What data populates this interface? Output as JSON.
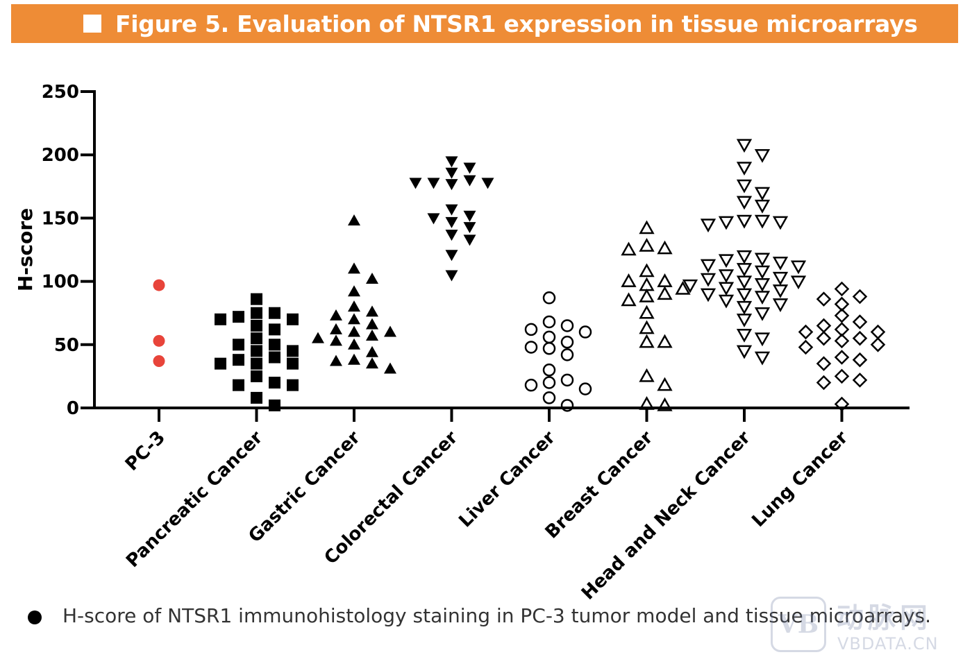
{
  "banner": {
    "title": "Figure 5. Evaluation of NTSR1 expression in tissue microarrays"
  },
  "caption": {
    "text": "H-score of NTSR1 immunohistology staining in PC-3 tumor model and tissue microarrays."
  },
  "watermark": {
    "logo": "VB",
    "cn": "动脉网",
    "en": "VBDATA.CN"
  },
  "colors": {
    "banner": "#ee8c36",
    "pc3_marker": "#e8443a",
    "ink": "#000000"
  },
  "chart_data": {
    "type": "scatter",
    "title": "",
    "xlabel": "",
    "ylabel": "H-score",
    "ylim": [
      0,
      250
    ],
    "yticks": [
      0,
      50,
      100,
      150,
      200,
      250
    ],
    "categories": [
      "PC-3",
      "Pancreatic Cancer",
      "Gastric Cancer",
      "Colorectal Cancer",
      "Liver Cancer",
      "Breast Cancer",
      "Head and Neck Cancer",
      "Lung Cancer"
    ],
    "series": [
      {
        "name": "PC-3",
        "marker": "circle-filled",
        "color": "#e8443a",
        "values": [
          97,
          53,
          37
        ]
      },
      {
        "name": "Pancreatic Cancer",
        "marker": "square-filled",
        "color": "#000000",
        "values": [
          86,
          75,
          75,
          72,
          70,
          70,
          65,
          62,
          55,
          50,
          50,
          45,
          45,
          40,
          38,
          35,
          35,
          35,
          25,
          20,
          18,
          18,
          8,
          2
        ]
      },
      {
        "name": "Gastric Cancer",
        "marker": "triangle-up-filled",
        "color": "#000000",
        "values": [
          148,
          110,
          102,
          92,
          80,
          76,
          73,
          70,
          66,
          62,
          60,
          60,
          57,
          55,
          53,
          50,
          44,
          38,
          37,
          35,
          31
        ]
      },
      {
        "name": "Colorectal Cancer",
        "marker": "triangle-down-filled",
        "color": "#000000",
        "values": [
          195,
          190,
          186,
          180,
          178,
          178,
          177,
          178,
          157,
          152,
          150,
          147,
          143,
          137,
          133,
          121,
          105
        ]
      },
      {
        "name": "Liver Cancer",
        "marker": "circle-open",
        "color": "#000000",
        "values": [
          87,
          68,
          65,
          62,
          60,
          56,
          52,
          48,
          47,
          42,
          30,
          22,
          20,
          18,
          15,
          8,
          2
        ]
      },
      {
        "name": "Breast Cancer",
        "marker": "triangle-up-open",
        "color": "#000000",
        "values": [
          142,
          128,
          126,
          125,
          108,
          100,
          100,
          97,
          94,
          90,
          88,
          85,
          75,
          63,
          52,
          52,
          25,
          18,
          3,
          2
        ]
      },
      {
        "name": "Head and Neck Cancer",
        "marker": "triangle-down-open",
        "color": "#000000",
        "values": [
          208,
          200,
          190,
          176,
          170,
          163,
          160,
          148,
          148,
          147,
          147,
          145,
          120,
          118,
          117,
          115,
          113,
          112,
          110,
          108,
          105,
          103,
          102,
          100,
          100,
          98,
          97,
          95,
          93,
          90,
          90,
          88,
          85,
          82,
          80,
          75,
          70,
          58,
          55,
          45,
          40
        ]
      },
      {
        "name": "Lung Cancer",
        "marker": "diamond-open",
        "color": "#000000",
        "values": [
          94,
          88,
          86,
          82,
          73,
          68,
          65,
          62,
          60,
          60,
          55,
          55,
          53,
          50,
          48,
          40,
          38,
          35,
          25,
          22,
          20,
          3
        ]
      }
    ]
  }
}
